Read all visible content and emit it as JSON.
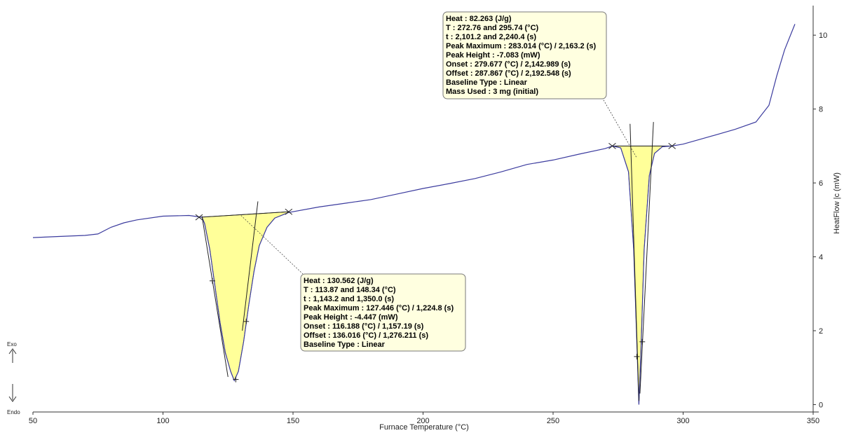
{
  "chart_data": {
    "type": "line",
    "title": "",
    "xlabel": "Furnace Temperature (°C)",
    "ylabel": "HeatFlow |c (mW)",
    "xlim": [
      50,
      350
    ],
    "ylim": [
      -0.2,
      10.8
    ],
    "x_ticks": [
      50,
      100,
      150,
      200,
      250,
      300,
      350
    ],
    "y_ticks": [
      0,
      2,
      4,
      6,
      8,
      10
    ],
    "direction_labels": {
      "up": "Exo",
      "down": "Endo"
    },
    "colors": {
      "curve": "#3b3b9e",
      "fill": "#ffff99",
      "axis": "#333333"
    },
    "series": [
      {
        "points": [
          [
            50,
            4.52
          ],
          [
            60,
            4.55
          ],
          [
            70,
            4.58
          ],
          [
            75,
            4.62
          ],
          [
            80,
            4.8
          ],
          [
            85,
            4.92
          ],
          [
            90,
            5.0
          ],
          [
            100,
            5.1
          ],
          [
            110,
            5.12
          ],
          [
            115,
            5.07
          ],
          [
            116,
            4.9
          ],
          [
            118,
            4.2
          ],
          [
            120,
            3.2
          ],
          [
            122,
            2.2
          ],
          [
            124,
            1.4
          ],
          [
            126,
            0.9
          ],
          [
            127.4,
            0.65
          ],
          [
            129,
            0.9
          ],
          [
            131,
            1.7
          ],
          [
            133,
            2.7
          ],
          [
            135,
            3.6
          ],
          [
            137,
            4.3
          ],
          [
            140,
            4.8
          ],
          [
            143,
            5.05
          ],
          [
            148.3,
            5.2
          ],
          [
            160,
            5.35
          ],
          [
            170,
            5.45
          ],
          [
            180,
            5.55
          ],
          [
            190,
            5.7
          ],
          [
            200,
            5.85
          ],
          [
            210,
            5.98
          ],
          [
            220,
            6.12
          ],
          [
            230,
            6.3
          ],
          [
            240,
            6.5
          ],
          [
            250,
            6.62
          ],
          [
            260,
            6.78
          ],
          [
            270,
            6.93
          ],
          [
            272.8,
            7.0
          ],
          [
            276,
            6.95
          ],
          [
            279,
            6.3
          ],
          [
            281,
            4.2
          ],
          [
            282.3,
            1.5
          ],
          [
            283,
            0.0
          ],
          [
            283.8,
            1.5
          ],
          [
            285,
            4.2
          ],
          [
            287,
            6.2
          ],
          [
            289,
            6.8
          ],
          [
            292,
            6.98
          ],
          [
            295.7,
            7.0
          ],
          [
            300,
            7.05
          ],
          [
            310,
            7.25
          ],
          [
            320,
            7.45
          ],
          [
            328,
            7.65
          ],
          [
            333,
            8.1
          ],
          [
            336,
            8.9
          ],
          [
            339,
            9.6
          ],
          [
            343,
            10.3
          ]
        ]
      }
    ],
    "peaks": [
      {
        "start": [
          113.87,
          5.07
        ],
        "end": [
          148.34,
          5.22
        ],
        "tangent_lines": [
          [
            [
              115,
              5.1
            ],
            [
              125,
              0.75
            ]
          ],
          [
            [
              136.5,
              5.5
            ],
            [
              130.5,
              2.0
            ]
          ]
        ],
        "marks": [
          [
            119,
            3.35
          ],
          [
            132,
            2.25
          ],
          [
            128,
            0.68
          ]
        ],
        "annotation": {
          "lines": [
            "Heat :  130.562 (J/g)",
            "T : 113.87 and 148.34 (°C)",
            "t : 1,143.2 and 1,350.0 (s)",
            "Peak Maximum :  127.446 (°C) / 1,224.8 (s)",
            "Peak Height :  -4.447 (mW)",
            "Onset :  116.188 (°C) / 1,157.19 (s)",
            "Offset :  136.016 (°C) / 1,276.211 (s)",
            "Baseline Type :  Linear"
          ],
          "leader_from": [
            130,
            5.12
          ]
        }
      },
      {
        "start": [
          272.76,
          7.0
        ],
        "end": [
          295.74,
          7.0
        ],
        "tangent_lines": [
          [
            [
              279.6,
              7.6
            ],
            [
              283,
              0.1
            ]
          ],
          [
            [
              288.6,
              7.65
            ],
            [
              283.4,
              0.3
            ]
          ]
        ],
        "marks": [
          [
            282.2,
            1.3
          ],
          [
            284.3,
            1.7
          ]
        ],
        "annotation": {
          "lines": [
            "Heat :  82.263 (J/g)",
            "T : 272.76 and 295.74 (°C)",
            "t : 2,101.2 and 2,240.4 (s)",
            "Peak Maximum :  283.014 (°C) / 2,163.2 (s)",
            "Peak Height :  -7.083 (mW)",
            "Onset :  279.677 (°C) / 2,142.989 (s)",
            "Offset :  287.867 (°C) / 2,192.548 (s)",
            "Baseline Type :  Linear",
            "Mass Used :  3 mg (initial)"
          ],
          "leader_from": [
            282,
            6.7
          ]
        }
      }
    ],
    "grid": false,
    "legend": "none"
  }
}
